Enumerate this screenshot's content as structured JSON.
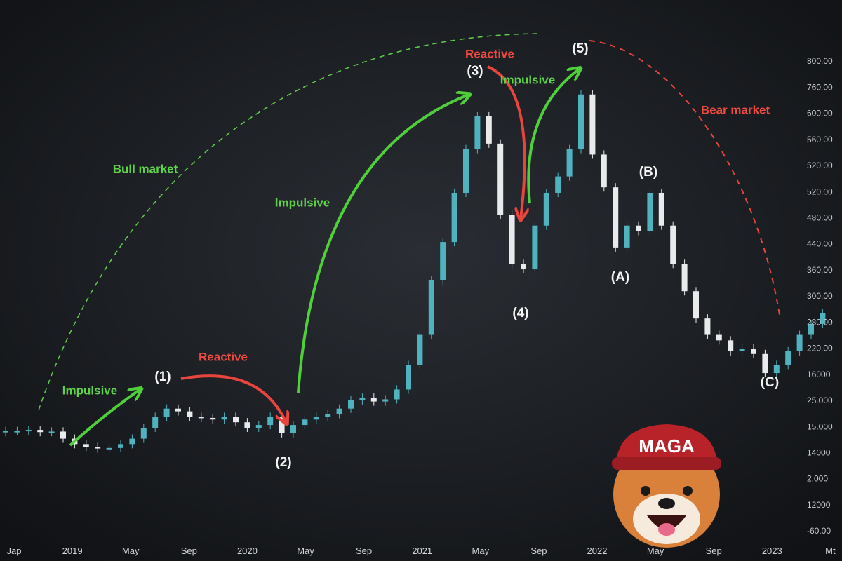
{
  "chart_data": {
    "type": "candlestick",
    "ylim": [
      -60,
      800
    ],
    "up_color": "#4fb3bf",
    "down_color": "#e8eaec",
    "close": [
      124,
      124,
      126,
      122,
      123,
      110,
      100,
      95,
      92,
      93,
      100,
      110,
      130,
      150,
      165,
      160,
      150,
      148,
      145,
      150,
      140,
      130,
      135,
      150,
      120,
      135,
      145,
      150,
      155,
      165,
      180,
      185,
      178,
      182,
      200,
      245,
      300,
      400,
      470,
      560,
      640,
      700,
      650,
      520,
      430,
      420,
      500,
      560,
      590,
      640,
      740,
      630,
      570,
      460,
      500,
      490,
      560,
      500,
      430,
      380,
      330,
      300,
      290,
      270,
      275,
      265,
      230,
      245,
      270,
      300,
      320,
      340
    ],
    "open": [
      122,
      124,
      124,
      126,
      122,
      123,
      110,
      100,
      95,
      92,
      93,
      100,
      110,
      130,
      150,
      165,
      160,
      150,
      148,
      145,
      150,
      140,
      130,
      135,
      150,
      120,
      135,
      145,
      150,
      155,
      165,
      180,
      185,
      178,
      182,
      200,
      245,
      300,
      400,
      470,
      560,
      640,
      700,
      650,
      520,
      430,
      420,
      500,
      560,
      590,
      640,
      740,
      630,
      570,
      460,
      500,
      490,
      560,
      500,
      430,
      380,
      330,
      300,
      290,
      270,
      275,
      265,
      230,
      245,
      270,
      300,
      320
    ],
    "y_axis_labels": [
      "800.00",
      "760.00",
      "600.00",
      "560.00",
      "520.00",
      "520.00",
      "480.00",
      "440.00",
      "360.00",
      "300.00",
      "280.00",
      "220.00",
      "16000",
      "25.000",
      "15.000",
      "14000",
      "2.000",
      "12000",
      "-60.00"
    ],
    "x_axis_labels": [
      "Jap",
      "2019",
      "May",
      "Sep",
      "2020",
      "May",
      "Sep",
      "2021",
      "May",
      "Sep",
      "2022",
      "May",
      "Sep",
      "2023",
      "Mt"
    ],
    "annotations": [
      {
        "text": "(1)",
        "color": "#f4f4f4"
      },
      {
        "text": "(2)",
        "color": "#f4f4f4"
      },
      {
        "text": "(3)",
        "color": "#f4f4f4"
      },
      {
        "text": "(4)",
        "color": "#f4f4f4"
      },
      {
        "text": "(5)",
        "color": "#f4f4f4"
      },
      {
        "text": "(A)",
        "color": "#f4f4f4"
      },
      {
        "text": "(B)",
        "color": "#f4f4f4"
      },
      {
        "text": "(C)",
        "color": "#f4f4f4"
      },
      {
        "text": "Impulsive",
        "color": "#5fd24a"
      },
      {
        "text": "Bull market",
        "color": "#5fd24a"
      },
      {
        "text": "Impulsive",
        "color": "#5fd24a"
      },
      {
        "text": "Impulsive",
        "color": "#5fd24a"
      },
      {
        "text": "Reactive",
        "color": "#ee4a40"
      },
      {
        "text": "Reactive",
        "color": "#ee4a40"
      },
      {
        "text": "Bear market",
        "color": "#ee4a40"
      }
    ]
  },
  "logo": {
    "cap_text": "MAGA"
  }
}
